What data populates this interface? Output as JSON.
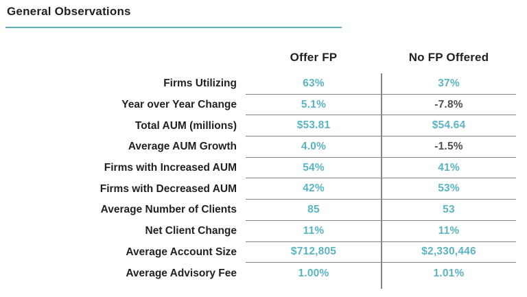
{
  "title": "General Observations",
  "colors": {
    "accent_teal": "#5bb4c2",
    "rule_teal": "#56aebc",
    "title_dark": "#231f20",
    "negative_gray": "#4d4d4f",
    "line_gray": "#828487"
  },
  "chart_data": {
    "type": "table",
    "title": "General Observations",
    "columns": [
      "Offer FP",
      "No FP Offered"
    ],
    "rows": [
      {
        "label": "Firms Utilizing",
        "col1": "63%",
        "col2": "37%"
      },
      {
        "label": "Year over Year Change",
        "col1": "5.1%",
        "col2": "-7.8%"
      },
      {
        "label": "Total AUM (millions)",
        "col1": "$53.81",
        "col2": "$54.64"
      },
      {
        "label": "Average AUM Growth",
        "col1": "4.0%",
        "col2": "-1.5%"
      },
      {
        "label": "Firms with Increased AUM",
        "col1": "54%",
        "col2": "41%"
      },
      {
        "label": "Firms with Decreased AUM",
        "col1": "42%",
        "col2": "53%"
      },
      {
        "label": "Average Number of Clients",
        "col1": "85",
        "col2": "53"
      },
      {
        "label": "Net Client Change",
        "col1": "11%",
        "col2": "11%"
      },
      {
        "label": "Average Account Size",
        "col1": "$712,805",
        "col2": "$2,330,446"
      },
      {
        "label": "Average Advisory Fee",
        "col1": "1.00%",
        "col2": "1.01%"
      }
    ]
  }
}
